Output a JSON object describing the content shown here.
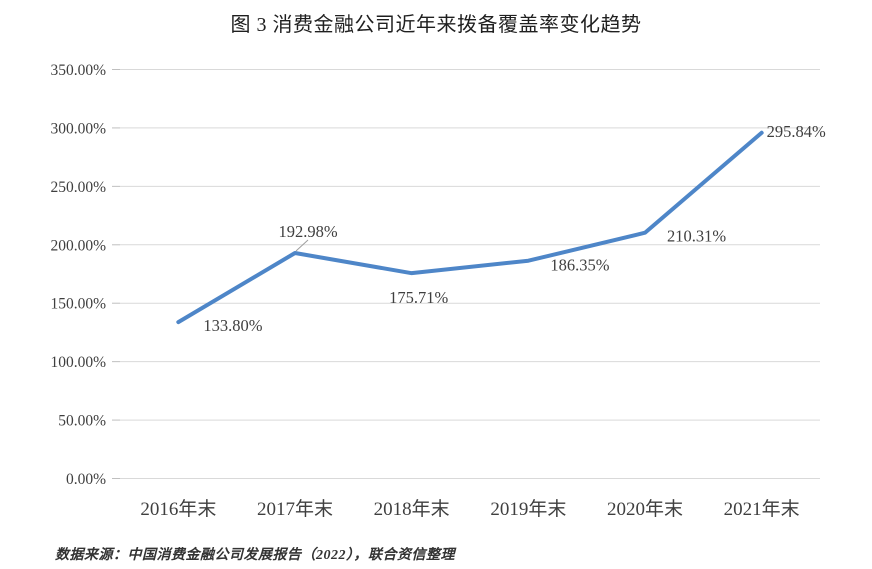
{
  "source_note": "数据来源：中国消费金融公司发展报告（2022），联合资信整理",
  "colors": {
    "line": "#4e86c8",
    "grid": "#d9d9d9",
    "tick": "#bfbfbf",
    "axis_text": "#3f3f3f",
    "title_text": "#1f1f1f",
    "leader": "#9e9e9e"
  },
  "chart_data": {
    "type": "line",
    "title": "图 3 消费金融公司近年来拨备覆盖率变化趋势",
    "categories": [
      "2016年末",
      "2017年末",
      "2018年末",
      "2019年末",
      "2020年末",
      "2021年末"
    ],
    "values": [
      133.8,
      192.98,
      175.71,
      186.35,
      210.31,
      295.84
    ],
    "data_labels": [
      "133.80%",
      "192.98%",
      "175.71%",
      "186.35%",
      "210.31%",
      "295.84%"
    ],
    "y_axis": {
      "ylim": [
        0,
        350
      ],
      "tick_values": [
        0,
        50,
        100,
        150,
        200,
        250,
        300,
        350
      ],
      "tick_labels": [
        "0.00%",
        "50.00%",
        "100.00%",
        "150.00%",
        "200.00%",
        "250.00%",
        "300.00%",
        "350.00%"
      ]
    },
    "xlabel": "",
    "ylabel": "",
    "grid": true,
    "legend": "none",
    "label_offsets": [
      [
        25,
        9,
        "start"
      ],
      [
        13,
        -16,
        "middle"
      ],
      [
        7,
        30,
        "middle"
      ],
      [
        22,
        10,
        "start"
      ],
      [
        22,
        9,
        "start"
      ],
      [
        5,
        4,
        "start"
      ]
    ],
    "leader_line_point_index": 1
  }
}
